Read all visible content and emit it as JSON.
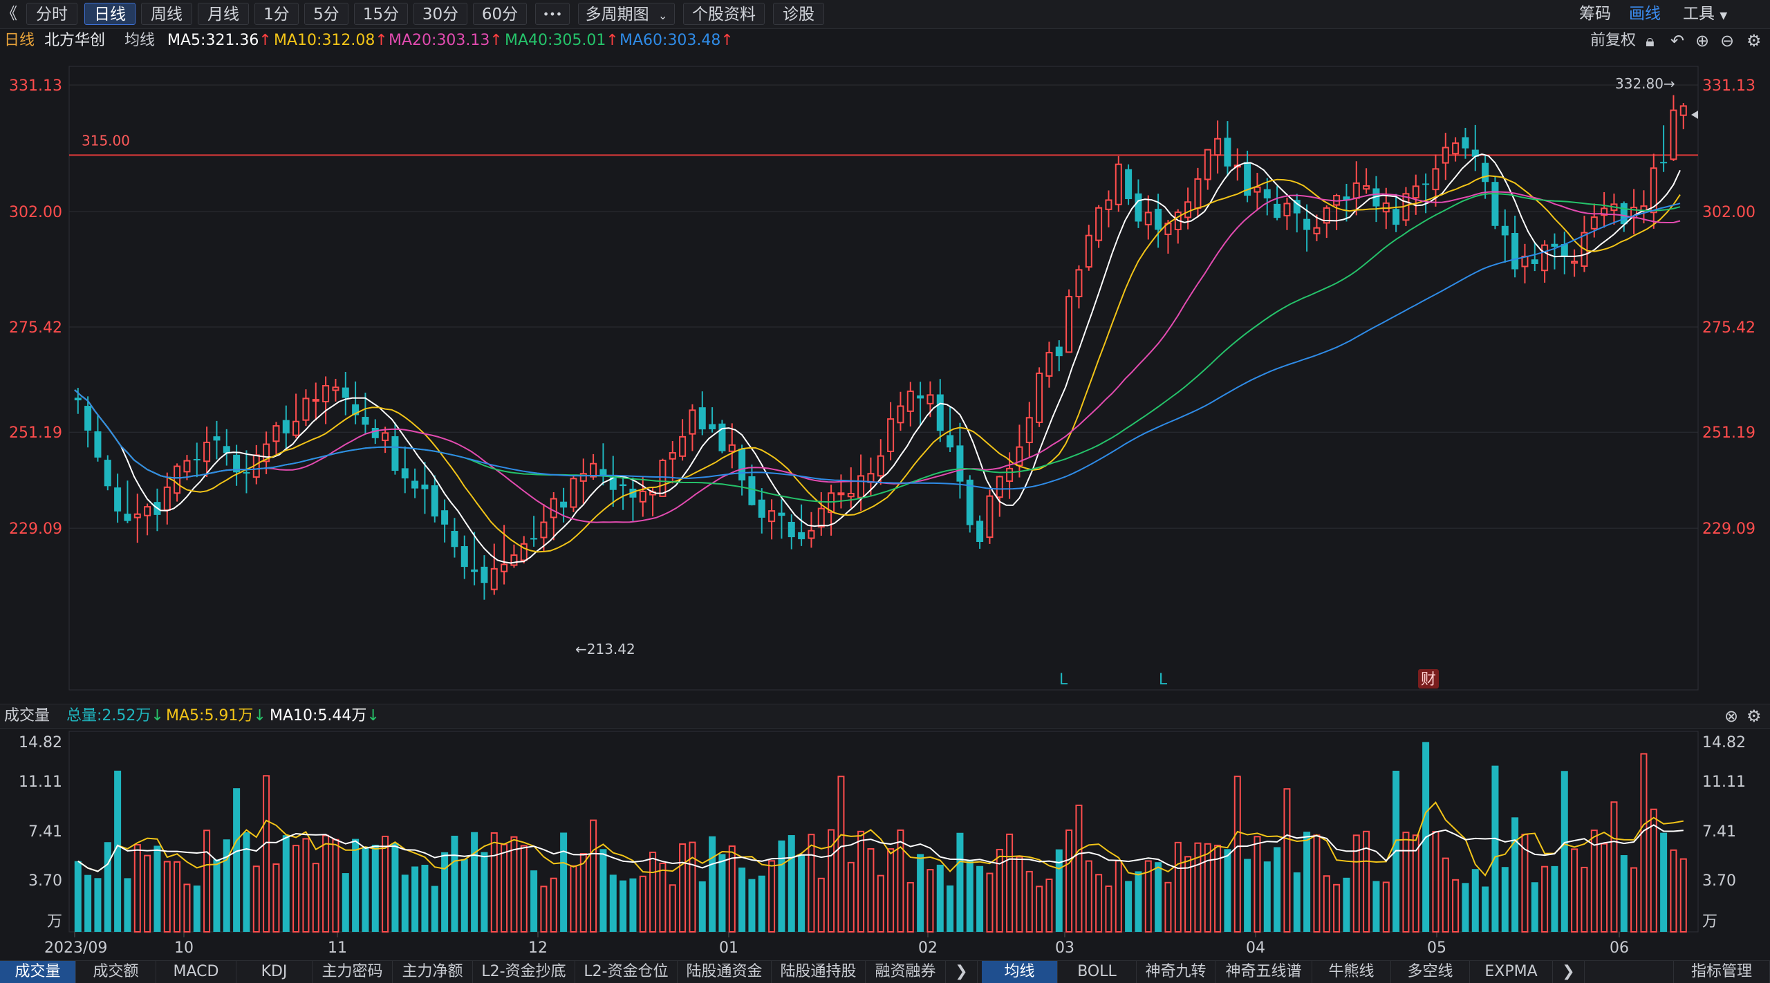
{
  "toolbar": {
    "back": "《",
    "periods": [
      "分时",
      "日线",
      "周线",
      "月线",
      "1分",
      "5分",
      "15分",
      "30分",
      "60分"
    ],
    "active_period": "日线",
    "more": "•••",
    "multi_period": "多周期图",
    "stock_info": "个股资料",
    "diagnose": "诊股",
    "right": [
      "筹码",
      "画线",
      "工具"
    ]
  },
  "infobar": {
    "period": "日线",
    "stock": "北方华创",
    "ma_label": "均线",
    "ma5": "MA5:321.36",
    "ma10": "MA10:312.08",
    "ma20": "MA20:303.13",
    "ma40": "MA40:305.01",
    "ma60": "MA60:303.48",
    "adjust": "前复权"
  },
  "colors": {
    "up": "#ff4d4d",
    "down": "#1fb6bf",
    "ma5": "#ffffff",
    "ma10": "#f2c418",
    "ma20": "#e24bb0",
    "ma40": "#25c26a",
    "ma60": "#2f8be6",
    "hline": "#e03a3a",
    "active_tab": "#1f4f8f"
  },
  "chart_data": {
    "type": "candlestick",
    "y_ticks": [
      "331.13",
      "302.00",
      "275.42",
      "251.19",
      "229.09"
    ],
    "x_ticks": [
      "2023/09",
      "10",
      "11",
      "12",
      "01",
      "02",
      "03",
      "04",
      "05",
      "06"
    ],
    "horizontal_line": "315.00",
    "max_label": "332.80→",
    "min_label": "←213.42",
    "markers": [
      "L",
      "L",
      "财"
    ],
    "volume": {
      "y_ticks": [
        "14.82",
        "11.11",
        "7.41",
        "3.70",
        "万"
      ]
    }
  },
  "volume_header": {
    "title": "成交量",
    "total": "总量:2.52万",
    "ma5": "MA5:5.91万",
    "ma10": "MA10:5.44万"
  },
  "bottom_tabs": [
    "成交量",
    "成交额",
    "MACD",
    "KDJ",
    "主力密码",
    "主力净额",
    "L2-资金抄底",
    "L2-资金仓位",
    "陆股通资金",
    "陆股通持股",
    "融资融券"
  ],
  "bottom_tabs_right": [
    "均线",
    "BOLL",
    "神奇九转",
    "神奇五线谱",
    "牛熊线",
    "多空线",
    "EXPMA"
  ],
  "indicator_manage": "指标管理"
}
